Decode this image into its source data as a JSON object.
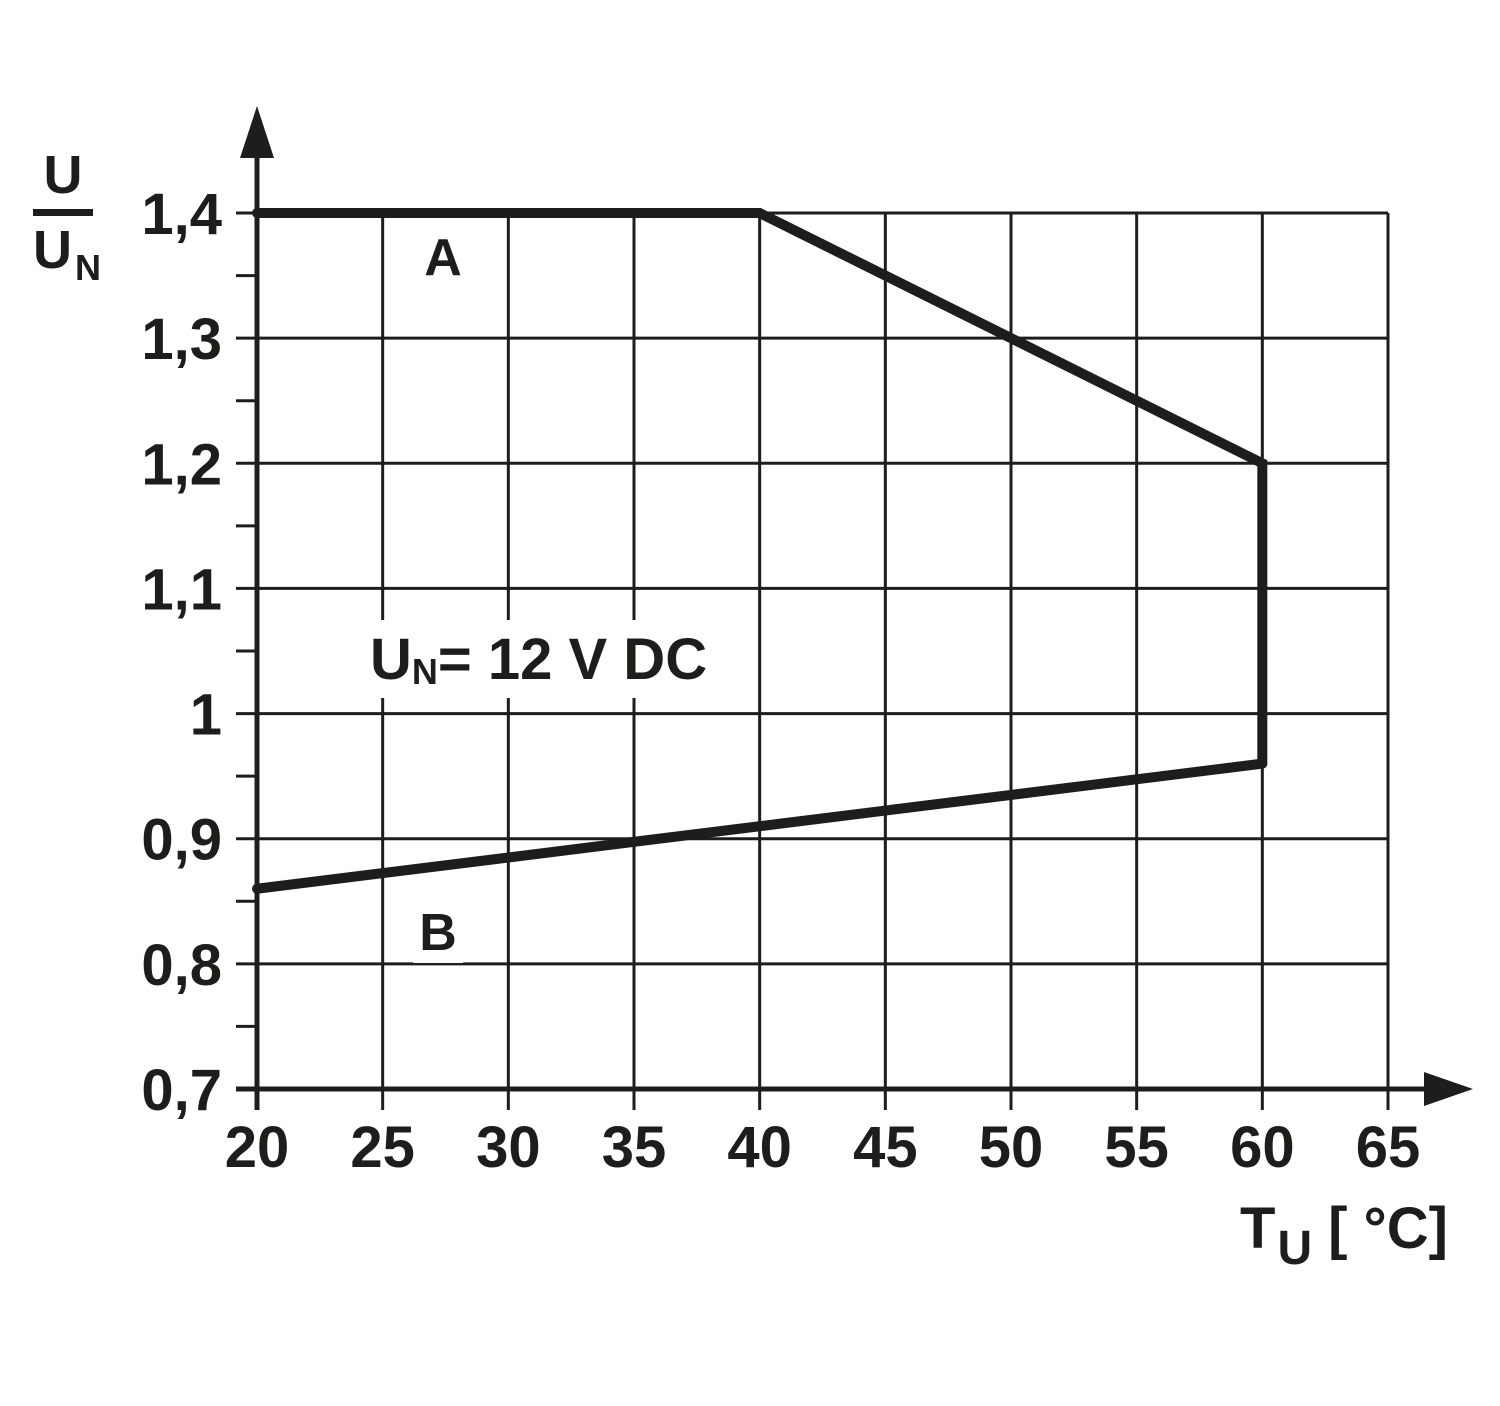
{
  "chart_data": {
    "type": "line",
    "title": "",
    "xlabel": "TU [ °C]",
    "ylabel": "U/UN",
    "xlim": [
      20,
      65
    ],
    "ylim": [
      0.7,
      1.4
    ],
    "grid": true,
    "x_ticks": [
      20,
      25,
      30,
      35,
      40,
      45,
      50,
      55,
      60,
      65
    ],
    "x_tick_labels": [
      "20",
      "25",
      "30",
      "35",
      "40",
      "45",
      "50",
      "55",
      "60",
      "65"
    ],
    "y_tick_values": [
      1.4,
      1.3,
      1.2,
      1.1,
      1.0,
      0.9,
      0.8,
      0.7
    ],
    "y_tick_labels": [
      "1,4",
      "1,3",
      "1,2",
      "1,1",
      "1",
      "0,9",
      "0,8",
      "0,7"
    ],
    "y_minor_ticks": [
      1.35,
      1.25,
      1.15,
      1.05,
      0.95,
      0.85,
      0.75
    ],
    "series": [
      {
        "name": "A",
        "points": [
          [
            20,
            1.4
          ],
          [
            40,
            1.4
          ],
          [
            60,
            1.2
          ],
          [
            60,
            0.96
          ]
        ]
      },
      {
        "name": "B",
        "points": [
          [
            20,
            0.86
          ],
          [
            60,
            0.96
          ]
        ]
      }
    ],
    "annotation": "UN= 12 V DC",
    "legend_position": "inline-labels",
    "line_color": "#1d1d1b"
  },
  "labels": {
    "curve_a": "A",
    "curve_b": "B",
    "annotation_u": "U",
    "annotation_sub": "N",
    "annotation_rest": "= 12 V DC",
    "y_axis_num": "U",
    "y_axis_den": "U",
    "y_axis_den_sub": "N",
    "x_axis_main": "T",
    "x_axis_sub": "U",
    "x_axis_unit": "[ °C]"
  }
}
